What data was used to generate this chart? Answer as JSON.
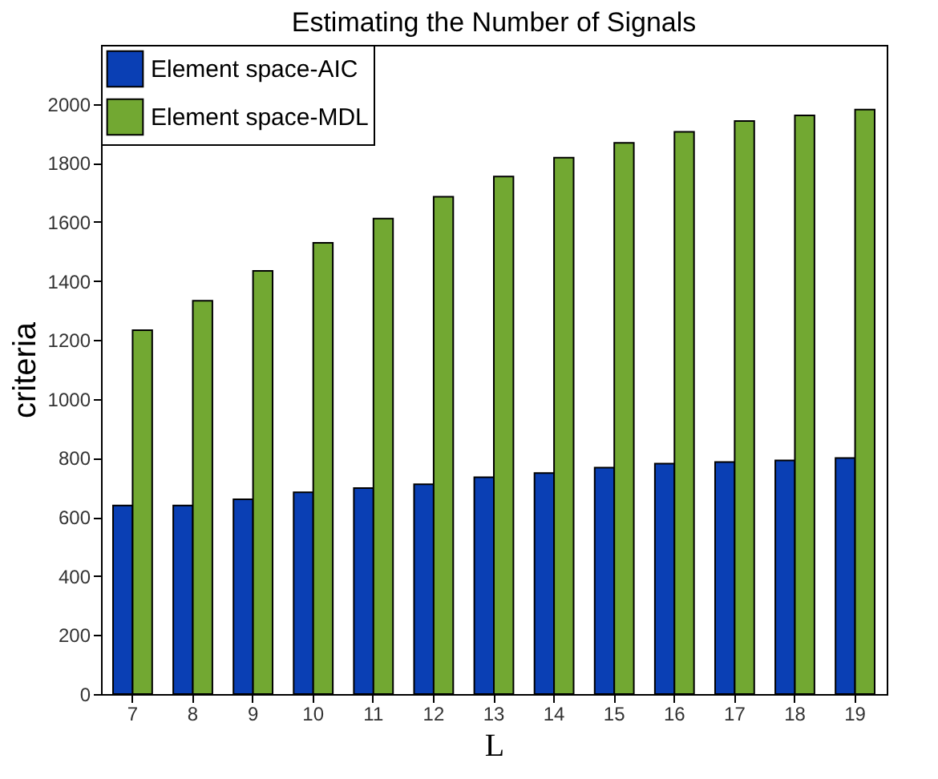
{
  "chart_data": {
    "type": "bar",
    "title": "Estimating the Number of Signals",
    "xlabel": "L",
    "ylabel": "criteria",
    "categories": [
      "7",
      "8",
      "9",
      "10",
      "11",
      "12",
      "13",
      "14",
      "15",
      "16",
      "17",
      "18",
      "19"
    ],
    "series": [
      {
        "name": "Element space-AIC",
        "color": "#0a3fb4",
        "values": [
          639,
          639,
          660,
          684,
          698,
          711,
          735,
          749,
          767,
          781,
          786,
          792,
          800
        ]
      },
      {
        "name": "Element space-MDL",
        "color": "#72a832",
        "values": [
          1233,
          1333,
          1434,
          1529,
          1611,
          1685,
          1754,
          1818,
          1868,
          1905,
          1942,
          1961,
          1981
        ]
      }
    ],
    "ylim": [
      0,
      2200
    ],
    "yticks": [
      0,
      200,
      400,
      600,
      800,
      1000,
      1200,
      1400,
      1600,
      1800,
      2000
    ],
    "grid": false,
    "legend": "top left"
  }
}
